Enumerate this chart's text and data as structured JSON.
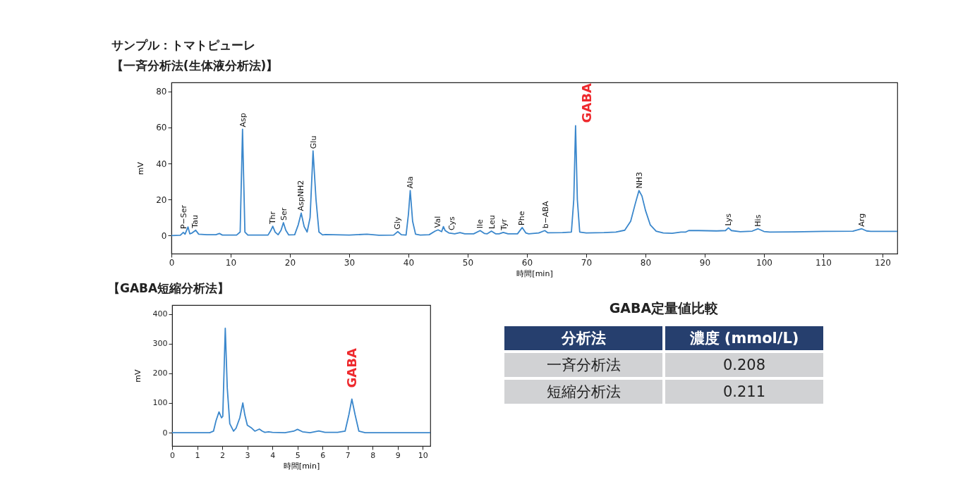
{
  "chart_data": [
    {
      "type": "line",
      "title": "サンプル：トマトピューレ",
      "subtitle": "【一斉分析法(生体液分析法)】",
      "xlabel": "時間[min]",
      "ylabel": "mV",
      "xlim": [
        0,
        122.5
      ],
      "ylim": [
        -10,
        85
      ],
      "xticks": [
        0,
        10,
        20,
        30,
        40,
        50,
        60,
        70,
        80,
        90,
        100,
        110,
        120
      ],
      "yticks": [
        0,
        20,
        40,
        60,
        80
      ],
      "marker": "none",
      "line_style": "solid",
      "series": [
        {
          "color": "#3a87cc",
          "x": [
            0,
            1.5,
            2,
            2.3,
            2.8,
            3.1,
            3.5,
            4.1,
            4.6,
            6,
            7.5,
            8.1,
            8.6,
            11,
            11.6,
            12,
            12.4,
            12.9,
            16.3,
            16.8,
            17.1,
            17.5,
            18,
            18.5,
            18.9,
            19.3,
            19.8,
            20.8,
            21.4,
            21.9,
            22.4,
            22.9,
            23.4,
            23.9,
            24.4,
            24.9,
            25.5,
            26,
            30,
            33,
            35,
            37.5,
            38.2,
            38.8,
            39.6,
            40,
            40.3,
            40.7,
            41.2,
            42,
            43.5,
            44.5,
            45,
            45.6,
            45.9,
            46.2,
            46.8,
            47.8,
            48.7,
            49.5,
            51,
            52.1,
            52.8,
            53.3,
            54,
            54.7,
            55.3,
            56,
            56.8,
            58.4,
            59.2,
            59.8,
            60.3,
            62,
            63,
            63.5,
            66,
            67.5,
            67.9,
            68.2,
            68.5,
            68.9,
            70,
            73,
            75,
            76.5,
            77.5,
            78.3,
            78.9,
            79.4,
            80,
            80.8,
            81.8,
            83,
            84.5,
            86,
            86.8,
            87.3,
            89,
            92,
            93.5,
            94,
            94.5,
            96,
            98,
            99,
            100,
            101,
            105,
            110,
            115,
            116.5,
            117.3,
            118,
            122.5
          ],
          "values": [
            0,
            0.2,
            1.8,
            0.8,
            4.8,
            1,
            1.5,
            3,
            0.8,
            0.5,
            0.5,
            1.2,
            0.3,
            0.3,
            2,
            59,
            2,
            0.3,
            0.3,
            3,
            5.2,
            2,
            0.5,
            3,
            7.2,
            3,
            0.4,
            0.5,
            6,
            12.5,
            5,
            2,
            10,
            47,
            20,
            2,
            0.4,
            0.6,
            0.3,
            0.8,
            0.2,
            0.3,
            2.2,
            0.5,
            0.3,
            12,
            25,
            8,
            0.8,
            0.3,
            0.5,
            2.5,
            3.2,
            2.2,
            5,
            2.8,
            1.5,
            1,
            1.7,
            1,
            1,
            2.8,
            1.2,
            1,
            2.5,
            1,
            1,
            1.8,
            1,
            1,
            4.5,
            1.5,
            1,
            1.5,
            2.8,
            1.6,
            1.7,
            2,
            20,
            61,
            20,
            2,
            1.5,
            1.7,
            2,
            3,
            8,
            18,
            25,
            22,
            14,
            6,
            2.5,
            1.5,
            1.3,
            2,
            2,
            2.8,
            2.8,
            2.6,
            2.8,
            4.3,
            2.8,
            2.2,
            2.5,
            3.8,
            2.3,
            2,
            2.1,
            2.4,
            2.5,
            3.8,
            2.6,
            2.4,
            2.4
          ]
        }
      ],
      "annotations": [
        {
          "text": "P−Ser",
          "x": 2.1,
          "y": 2.5
        },
        {
          "text": "Tau",
          "x": 4.1,
          "y": 3
        },
        {
          "text": "Asp",
          "x": 12.1,
          "y": 59
        },
        {
          "text": "Thr",
          "x": 17.1,
          "y": 5.2
        },
        {
          "text": "Ser",
          "x": 19,
          "y": 7.2
        },
        {
          "text": "AspNH2",
          "x": 21.9,
          "y": 12.5
        },
        {
          "text": "Glu",
          "x": 24,
          "y": 47
        },
        {
          "text": "Gly",
          "x": 38.2,
          "y": 2.2
        },
        {
          "text": "Ala",
          "x": 40.3,
          "y": 25
        },
        {
          "text": "Val",
          "x": 45,
          "y": 3.2
        },
        {
          "text": "Cys",
          "x": 47.4,
          "y": 1.7
        },
        {
          "text": "Ile",
          "x": 52.1,
          "y": 2.8
        },
        {
          "text": "Leu",
          "x": 54.2,
          "y": 2.5
        },
        {
          "text": "Tyr",
          "x": 56.2,
          "y": 1.8
        },
        {
          "text": "Phe",
          "x": 59.2,
          "y": 4.5
        },
        {
          "text": "b−ABA",
          "x": 63.2,
          "y": 2.8
        },
        {
          "text": "GABA",
          "x": 68.2,
          "y": 61
        },
        {
          "text": "NH3",
          "x": 79,
          "y": 25
        },
        {
          "text": "Lys",
          "x": 94,
          "y": 4.3
        },
        {
          "text": "His",
          "x": 99,
          "y": 3.8
        },
        {
          "text": "Arg",
          "x": 116.6,
          "y": 3.8
        }
      ]
    },
    {
      "type": "line",
      "title": "【GABA短縮分析法】",
      "xlabel": "時間[min]",
      "ylabel": "mV",
      "xlim": [
        0,
        10.3
      ],
      "ylim": [
        -45,
        430
      ],
      "xticks": [
        0,
        1,
        2,
        3,
        4,
        5,
        6,
        7,
        8,
        9,
        10
      ],
      "yticks": [
        0,
        100,
        200,
        300,
        400
      ],
      "marker": "none",
      "line_style": "solid",
      "series": [
        {
          "color": "#3a87cc",
          "x": [
            0,
            1.5,
            1.65,
            1.75,
            1.87,
            1.97,
            2.02,
            2.12,
            2.2,
            2.3,
            2.45,
            2.55,
            2.7,
            2.82,
            2.9,
            3,
            3.15,
            3.3,
            3.48,
            3.6,
            3.7,
            3.85,
            4,
            4.5,
            4.85,
            5,
            5.2,
            5.5,
            5.85,
            6.1,
            6.6,
            6.9,
            7.05,
            7.17,
            7.3,
            7.45,
            7.7,
            10.3
          ],
          "values": [
            0,
            0,
            5,
            40,
            70,
            50,
            55,
            352,
            150,
            30,
            5,
            15,
            50,
            100,
            60,
            25,
            17,
            5,
            12,
            5,
            1,
            3,
            1,
            0,
            5,
            11,
            3,
            0,
            6,
            1,
            1,
            5,
            60,
            113,
            60,
            5,
            0,
            0
          ]
        }
      ],
      "annotations": [
        {
          "text": "GABA",
          "x": 7.17,
          "y": 113
        }
      ]
    },
    {
      "type": "other",
      "title": "GABA定量値比較",
      "xlabel": "分析法",
      "ylabel": "濃度 (mmol/L)",
      "categories": [
        "一斉分析法",
        "短縮分析法"
      ],
      "values": [
        0.208,
        0.211
      ],
      "data_labels": true
    }
  ]
}
